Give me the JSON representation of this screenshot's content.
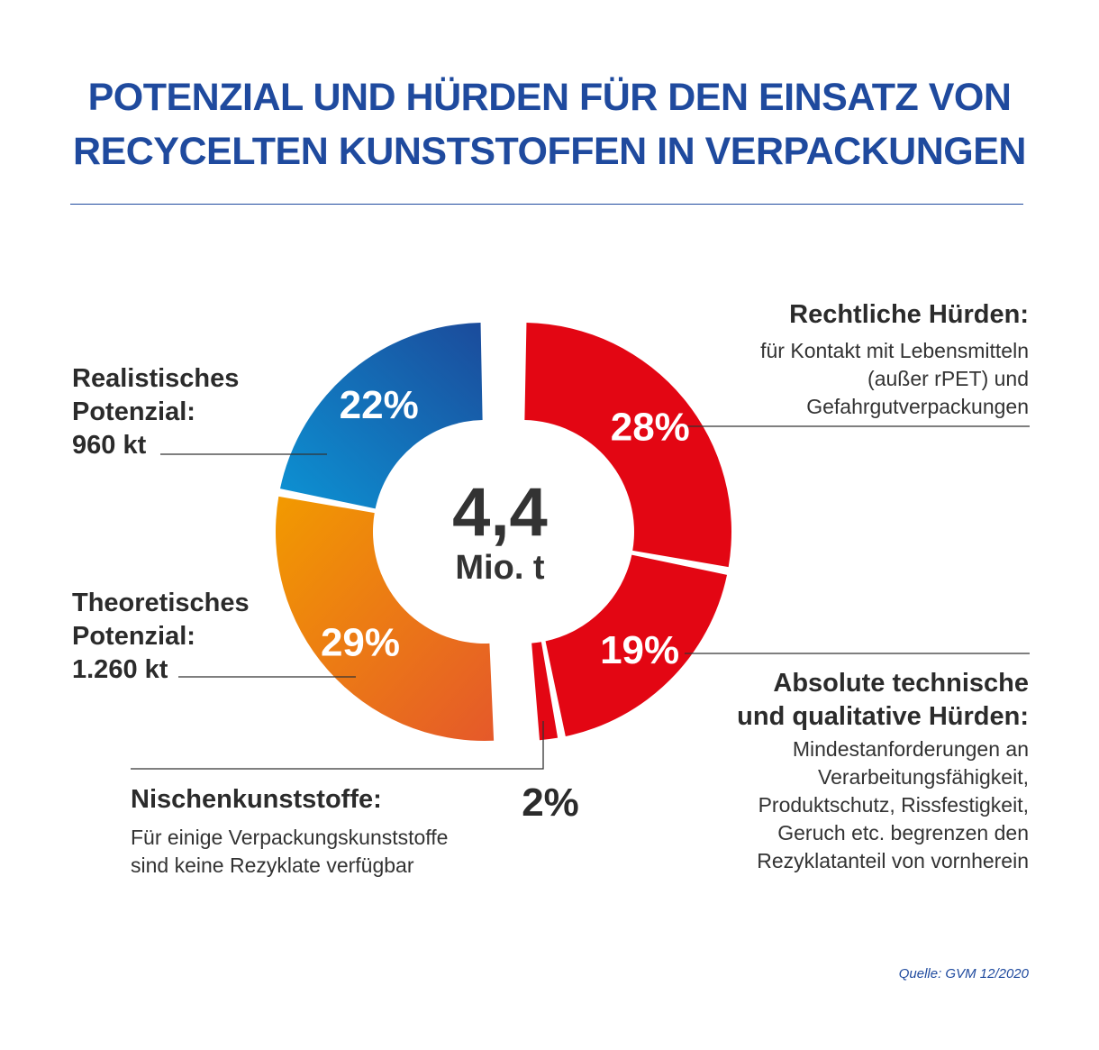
{
  "title_line1": "POTENZIAL UND HÜRDEN FÜR DEN EINSATZ VON",
  "title_line2": "RECYCELTEN KUNSTSTOFFEN IN VERPACKUNGEN",
  "center": {
    "value": "4,4",
    "unit": "Mio. t"
  },
  "labels": {
    "rechtlich": {
      "heading": "Rechtliche Hürden:",
      "lines": [
        "für Kontakt mit Lebensmitteln",
        "(außer rPET) und",
        "Gefahrgutverpackungen"
      ]
    },
    "absolut": {
      "heading_lines": [
        "Absolute technische",
        "und qualitative Hürden:"
      ],
      "lines": [
        "Mindestanforderungen an",
        "Verarbeitungsfähigkeit,",
        "Produktschutz, Rissfestigkeit,",
        "Geruch etc. begrenzen den",
        "Rezyklatanteil von vornherein"
      ]
    },
    "nische": {
      "heading": "Nischenkunststoffe:",
      "lines": [
        "Für einige Verpackungskunststoffe",
        "sind keine Rezyklate verfügbar"
      ]
    },
    "theoretisch": {
      "lines": [
        "Theoretisches",
        "Potenzial:",
        "1.260 kt"
      ]
    },
    "realistisch": {
      "lines": [
        "Realistisches",
        "Potenzial:",
        "960 kt"
      ]
    }
  },
  "source": "Quelle: GVM 12/2020",
  "colors": {
    "title": "#1f4a9e",
    "red": "#e30613",
    "blue_light": "#0c93d4",
    "blue_dark": "#1b4b9b",
    "orange_light": "#f29a00",
    "orange_dark": "#e5592a"
  },
  "chart_data": {
    "type": "pie",
    "categories": [
      "Rechtliche Hürden",
      "Absolute technische und qualitative Hürden",
      "Nischenkunststoffe",
      "Theoretisches Potenzial",
      "Realistisches Potenzial"
    ],
    "values": [
      28,
      19,
      2,
      29,
      22
    ],
    "labels": [
      "28%",
      "19%",
      "2%",
      "29%",
      "22%"
    ],
    "total": "4,4 Mio. t"
  }
}
